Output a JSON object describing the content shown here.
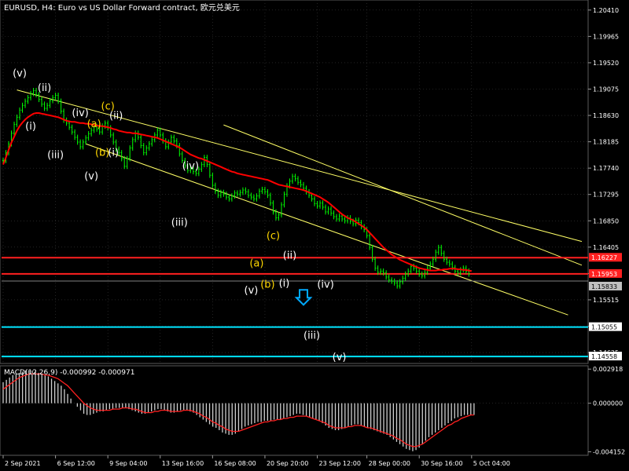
{
  "window": {
    "title": "EURUSD, H4:  Euro vs US Dollar Forward contract, 欧元兑美元",
    "symbol": "EURUSD",
    "timeframe": "H4"
  },
  "colors": {
    "background": "#000000",
    "grid": "#3a3a3a",
    "candles_bull": "#00ff00",
    "candles_bear": "#00ff00",
    "ma": "#ff0000",
    "channel": "#ffff66",
    "red_level": "#ff2020",
    "cyan_level": "#00e5ff",
    "arrow": "#00aaff",
    "wave_white": "#ffffff",
    "wave_yellow": "#ffd700",
    "macd_hist": "#cfcfcf",
    "macd_signal": "#ff2020",
    "axis_text": "#ffffff"
  },
  "chart_data": [
    {
      "type": "line",
      "title": "EURUSD, H4:  Euro vs US Dollar Forward contract, 欧元兑美元",
      "x_tick_labels": [
        "2 Sep 2021",
        "6 Sep 12:00",
        "9 Sep 04:00",
        "13 Sep 16:00",
        "16 Sep 08:00",
        "20 Sep 20:00",
        "23 Sep 12:00",
        "28 Sep 00:00",
        "30 Sep 16:00",
        "5 Oct 04:00"
      ],
      "y_tick_labels": [
        "1.20410",
        "1.19965",
        "1.19520",
        "1.19075",
        "1.18630",
        "1.18185",
        "1.17740",
        "1.17295",
        "1.16850",
        "1.16405",
        "1.15960",
        "1.15515",
        "1.15070",
        "1.14625"
      ],
      "ylim": [
        1.1444,
        1.2058
      ],
      "grid": true,
      "series": [
        {
          "kind": "price",
          "values": [
            1.1787,
            1.18,
            1.1815,
            1.1833,
            1.1848,
            1.186,
            1.1872,
            1.188,
            1.1887,
            1.1893,
            1.19,
            1.1905,
            1.1898,
            1.189,
            1.1882,
            1.1875,
            1.188,
            1.1888,
            1.1893,
            1.1897,
            1.1887,
            1.187,
            1.1855,
            1.185,
            1.1843,
            1.1835,
            1.1826,
            1.1818,
            1.181,
            1.1818,
            1.1825,
            1.1832,
            1.1838,
            1.1844,
            1.184,
            1.1835,
            1.1845,
            1.185,
            1.1842,
            1.183,
            1.1818,
            1.1806,
            1.18,
            1.179,
            1.1777,
            1.179,
            1.1808,
            1.1822,
            1.1833,
            1.1826,
            1.1812,
            1.18,
            1.1808,
            1.1815,
            1.1822,
            1.183,
            1.1838,
            1.183,
            1.182,
            1.181,
            1.1818,
            1.1826,
            1.182,
            1.1812,
            1.1798,
            1.1787,
            1.1778,
            1.177,
            1.1774,
            1.1768,
            1.1765,
            1.1772,
            1.178,
            1.1792,
            1.178,
            1.1762,
            1.1745,
            1.1735,
            1.1728,
            1.1733,
            1.173,
            1.1725,
            1.1722,
            1.1727,
            1.1732,
            1.173,
            1.1733,
            1.1737,
            1.1734,
            1.1728,
            1.1725,
            1.1722,
            1.1727,
            1.1735,
            1.1738,
            1.1734,
            1.1728,
            1.1715,
            1.17,
            1.169,
            1.1695,
            1.1712,
            1.173,
            1.1744,
            1.1752,
            1.176,
            1.1756,
            1.175,
            1.1746,
            1.174,
            1.1734,
            1.1728,
            1.1722,
            1.1714,
            1.171,
            1.1715,
            1.1708,
            1.17,
            1.1705,
            1.1698,
            1.1692,
            1.1688,
            1.1693,
            1.1688,
            1.1685,
            1.169,
            1.1684,
            1.168,
            1.1686,
            1.1682,
            1.1675,
            1.167,
            1.166,
            1.164,
            1.162,
            1.1605,
            1.1598,
            1.16,
            1.1597,
            1.159,
            1.1585,
            1.1583,
            1.158,
            1.1575,
            1.1582,
            1.1588,
            1.1595,
            1.16,
            1.1608,
            1.1605,
            1.16,
            1.1595,
            1.1592,
            1.1598,
            1.1605,
            1.1612,
            1.162,
            1.1632,
            1.164,
            1.163,
            1.162,
            1.1615,
            1.1612,
            1.1606,
            1.16,
            1.1597,
            1.1602,
            1.1605,
            1.16,
            1.1595
          ],
          "color": "#00ff00"
        },
        {
          "kind": "moving_average",
          "values": [
            1.178,
            1.1792,
            1.1805,
            1.1817,
            1.1827,
            1.1837,
            1.1845,
            1.1851,
            1.1856,
            1.186,
            1.1863,
            1.1866,
            1.1867,
            1.1867,
            1.1866,
            1.1865,
            1.1864,
            1.1863,
            1.1862,
            1.1861,
            1.186,
            1.1858,
            1.1856,
            1.1854,
            1.1853,
            1.1852,
            1.1852,
            1.1851,
            1.185,
            1.185,
            1.1849,
            1.1849,
            1.1848,
            1.1847,
            1.1846,
            1.1845,
            1.1845,
            1.1844,
            1.1843,
            1.1842,
            1.184,
            1.1839,
            1.1837,
            1.1836,
            1.1835,
            1.1834,
            1.1834,
            1.1833,
            1.1833,
            1.1832,
            1.1831,
            1.183,
            1.1829,
            1.1828,
            1.1827,
            1.1826,
            1.1825,
            1.1823,
            1.1821,
            1.1819,
            1.1817,
            1.1815,
            1.1813,
            1.1811,
            1.1809,
            1.1806,
            1.1803,
            1.18,
            1.1797,
            1.1795,
            1.1793,
            1.1791,
            1.179,
            1.1788,
            1.1786,
            1.1784,
            1.1782,
            1.178,
            1.1778,
            1.1776,
            1.1774,
            1.1772,
            1.177,
            1.1768,
            1.1767,
            1.1765,
            1.1764,
            1.1763,
            1.1762,
            1.1761,
            1.176,
            1.1759,
            1.1758,
            1.1757,
            1.1756,
            1.1755,
            1.1754,
            1.1752,
            1.175,
            1.1748,
            1.1746,
            1.1745,
            1.1744,
            1.1743,
            1.1742,
            1.1741,
            1.174,
            1.1739,
            1.1738,
            1.1737,
            1.1735,
            1.1733,
            1.1731,
            1.1729,
            1.1727,
            1.1725,
            1.1722,
            1.1719,
            1.1716,
            1.1712,
            1.1708,
            1.1704,
            1.17,
            1.1696,
            1.1693,
            1.169,
            1.1688,
            1.1686,
            1.1683,
            1.168,
            1.1677,
            1.1674,
            1.167,
            1.1665,
            1.166,
            1.1655,
            1.165,
            1.1645,
            1.164,
            1.1636,
            1.1632,
            1.1628,
            1.1625,
            1.1622,
            1.1619,
            1.1617,
            1.1615,
            1.1613,
            1.1611,
            1.1609,
            1.1607,
            1.1605,
            1.1604,
            1.1603,
            1.1602,
            1.1601,
            1.1601,
            1.1601,
            1.1602,
            1.1602,
            1.1603,
            1.1603,
            1.1604,
            1.1604,
            1.1604,
            1.1603,
            1.1603,
            1.1602,
            1.1602,
            1.1601,
            1.16
          ],
          "color": "#ff0000"
        }
      ],
      "horizontal_levels": [
        {
          "value": 1.16227,
          "label": "1.16227",
          "color": "#ff2020"
        },
        {
          "value": 1.15953,
          "label": "1.15953",
          "color": "#ff2020"
        },
        {
          "value": 1.15833,
          "label": "1.15833",
          "color": "#808080"
        },
        {
          "value": 1.15055,
          "label": "1.15055",
          "color": "#00e5ff"
        },
        {
          "value": 1.14558,
          "label": "1.14558",
          "color": "#00e5ff"
        }
      ],
      "trend_lines": [
        {
          "from": {
            "bar": 5,
            "price": 1.1906
          },
          "to": {
            "bar": 210,
            "price": 1.165
          },
          "color": "#ffff66"
        },
        {
          "from": {
            "bar": 30,
            "price": 1.1815
          },
          "to": {
            "bar": 205,
            "price": 1.1526
          },
          "color": "#ffff66"
        },
        {
          "from": {
            "bar": 80,
            "price": 1.1847
          },
          "to": {
            "bar": 210,
            "price": 1.161
          },
          "color": "#ffff66"
        }
      ],
      "annotations": [
        {
          "text": "(v)",
          "bar": 6,
          "price": 1.1929,
          "color": "#ffffff"
        },
        {
          "text": "(ii)",
          "bar": 15,
          "price": 1.1904,
          "color": "#ffffff"
        },
        {
          "text": "(i)",
          "bar": 10,
          "price": 1.1839,
          "color": "#ffffff"
        },
        {
          "text": "(iii)",
          "bar": 19,
          "price": 1.1791,
          "color": "#ffffff"
        },
        {
          "text": "(iv)",
          "bar": 28,
          "price": 1.1862,
          "color": "#ffffff"
        },
        {
          "text": "(v)",
          "bar": 32,
          "price": 1.1755,
          "color": "#ffffff"
        },
        {
          "text": "(a)",
          "bar": 33,
          "price": 1.1843,
          "color": "#ffd700"
        },
        {
          "text": "(c)",
          "bar": 38,
          "price": 1.1873,
          "color": "#ffd700"
        },
        {
          "text": "(ii)",
          "bar": 41,
          "price": 1.1857,
          "color": "#ffffff"
        },
        {
          "text": "(b)",
          "bar": 36,
          "price": 1.1795,
          "color": "#ffd700"
        },
        {
          "text": "(i)",
          "bar": 40,
          "price": 1.1795,
          "color": "#ffffff"
        },
        {
          "text": "(iv)",
          "bar": 68,
          "price": 1.1772,
          "color": "#ffffff"
        },
        {
          "text": "(iii)",
          "bar": 64,
          "price": 1.1677,
          "color": "#ffffff"
        },
        {
          "text": "(a)",
          "bar": 92,
          "price": 1.1608,
          "color": "#ffd700"
        },
        {
          "text": "(c)",
          "bar": 98,
          "price": 1.1654,
          "color": "#ffd700"
        },
        {
          "text": "(ii)",
          "bar": 104,
          "price": 1.1621,
          "color": "#ffffff"
        },
        {
          "text": "(b)",
          "bar": 96,
          "price": 1.1572,
          "color": "#ffd700"
        },
        {
          "text": "(i)",
          "bar": 102,
          "price": 1.1574,
          "color": "#ffffff"
        },
        {
          "text": "(v)",
          "bar": 90,
          "price": 1.1562,
          "color": "#ffffff"
        },
        {
          "text": "(iv)",
          "bar": 117,
          "price": 1.1572,
          "color": "#ffffff"
        },
        {
          "text": "(iii)",
          "bar": 112,
          "price": 1.1486,
          "color": "#ffffff"
        },
        {
          "text": "(v)",
          "bar": 122,
          "price": 1.1449,
          "color": "#ffffff"
        }
      ]
    },
    {
      "type": "bar",
      "title": "MACD(12,26,9) -0.000992 -0.000971",
      "y_tick_labels": [
        "0.002918",
        "0.000000",
        "-0.004152"
      ],
      "ylim": [
        -0.00445,
        0.0032
      ],
      "histogram": [
        0.0018,
        0.002,
        0.0022,
        0.0024,
        0.0025,
        0.0026,
        0.0027,
        0.0028,
        0.0028,
        0.0028,
        0.0027,
        0.0026,
        0.0025,
        0.0024,
        0.0023,
        0.0021,
        0.0019,
        0.0017,
        0.0015,
        0.0012,
        0.0008,
        0.0004,
        0.0,
        -0.0003,
        -0.0006,
        -0.0009,
        -0.001,
        -0.001,
        -0.0009,
        -0.0008,
        -0.0007,
        -0.0007,
        -0.0006,
        -0.0005,
        -0.0005,
        -0.0004,
        -0.0004,
        -0.0004,
        -0.0004,
        -0.0005,
        -0.0006,
        -0.0007,
        -0.0008,
        -0.0009,
        -0.0009,
        -0.0008,
        -0.0007,
        -0.0006,
        -0.0005,
        -0.0005,
        -0.0006,
        -0.0007,
        -0.0008,
        -0.0008,
        -0.0007,
        -0.0006,
        -0.0006,
        -0.0006,
        -0.0007,
        -0.0008,
        -0.001,
        -0.0012,
        -0.0014,
        -0.0016,
        -0.0018,
        -0.002,
        -0.0021,
        -0.0023,
        -0.0025,
        -0.0026,
        -0.0027,
        -0.0027,
        -0.0026,
        -0.0024,
        -0.0022,
        -0.002,
        -0.0019,
        -0.0018,
        -0.0017,
        -0.0016,
        -0.0016,
        -0.0015,
        -0.0015,
        -0.0015,
        -0.0014,
        -0.0014,
        -0.0014,
        -0.0013,
        -0.0012,
        -0.0011,
        -0.001,
        -0.0009,
        -0.0009,
        -0.001,
        -0.0011,
        -0.0012,
        -0.0013,
        -0.0014,
        -0.0015,
        -0.0017,
        -0.0019,
        -0.0021,
        -0.0022,
        -0.0023,
        -0.0023,
        -0.0022,
        -0.0021,
        -0.002,
        -0.0019,
        -0.0018,
        -0.0018,
        -0.0019,
        -0.002,
        -0.0021,
        -0.0022,
        -0.0023,
        -0.0024,
        -0.0025,
        -0.0026,
        -0.0027,
        -0.0029,
        -0.0031,
        -0.0033,
        -0.0035,
        -0.0037,
        -0.0039,
        -0.004,
        -0.0041,
        -0.004,
        -0.0038,
        -0.0035,
        -0.0032,
        -0.0029,
        -0.0027,
        -0.0025,
        -0.0023,
        -0.0021,
        -0.0019,
        -0.0017,
        -0.0015,
        -0.0013,
        -0.0012,
        -0.0011,
        -0.001,
        -0.001,
        -0.001,
        -0.001
      ],
      "signal": [
        0.0012,
        0.0014,
        0.0016,
        0.0018,
        0.002,
        0.0022,
        0.0023,
        0.0024,
        0.0025,
        0.0025,
        0.0025,
        0.0025,
        0.0025,
        0.0024,
        0.0024,
        0.0023,
        0.0022,
        0.0021,
        0.0019,
        0.0017,
        0.0015,
        0.0012,
        0.0009,
        0.0006,
        0.0003,
        0.0,
        -0.0002,
        -0.0004,
        -0.0005,
        -0.0006,
        -0.0006,
        -0.0006,
        -0.0006,
        -0.0006,
        -0.0005,
        -0.0005,
        -0.0005,
        -0.0004,
        -0.0004,
        -0.0004,
        -0.0005,
        -0.0005,
        -0.0006,
        -0.0007,
        -0.0008,
        -0.0008,
        -0.0008,
        -0.0007,
        -0.0007,
        -0.0006,
        -0.0006,
        -0.0006,
        -0.0007,
        -0.0007,
        -0.0007,
        -0.0007,
        -0.0006,
        -0.0006,
        -0.0006,
        -0.0007,
        -0.0008,
        -0.0009,
        -0.0011,
        -0.0012,
        -0.0014,
        -0.0016,
        -0.0017,
        -0.0019,
        -0.002,
        -0.0022,
        -0.0023,
        -0.0024,
        -0.0024,
        -0.0024,
        -0.0023,
        -0.0022,
        -0.0021,
        -0.002,
        -0.0019,
        -0.0018,
        -0.0017,
        -0.0016,
        -0.0016,
        -0.0015,
        -0.0015,
        -0.0014,
        -0.0014,
        -0.0013,
        -0.0013,
        -0.0012,
        -0.0012,
        -0.0011,
        -0.0011,
        -0.0011,
        -0.0011,
        -0.0012,
        -0.0013,
        -0.0014,
        -0.0015,
        -0.0016,
        -0.0017,
        -0.0019,
        -0.002,
        -0.0021,
        -0.0021,
        -0.0021,
        -0.0021,
        -0.002,
        -0.002,
        -0.0019,
        -0.0019,
        -0.0019,
        -0.002,
        -0.0021,
        -0.0021,
        -0.0022,
        -0.0023,
        -0.0024,
        -0.0025,
        -0.0026,
        -0.0027,
        -0.0028,
        -0.003,
        -0.0031,
        -0.0033,
        -0.0035,
        -0.0036,
        -0.0037,
        -0.0037,
        -0.0036,
        -0.0035,
        -0.0033,
        -0.0031,
        -0.0029,
        -0.0027,
        -0.0025,
        -0.0023,
        -0.0021,
        -0.0019,
        -0.0018,
        -0.0016,
        -0.0015,
        -0.0013,
        -0.0012,
        -0.0011,
        -0.001,
        -0.001
      ],
      "signal_color": "#ff2020",
      "bar_color": "#cfcfcf"
    }
  ],
  "arrow": {
    "direction": "down",
    "bar": 109,
    "price": 1.1555,
    "color": "#00aaff"
  }
}
